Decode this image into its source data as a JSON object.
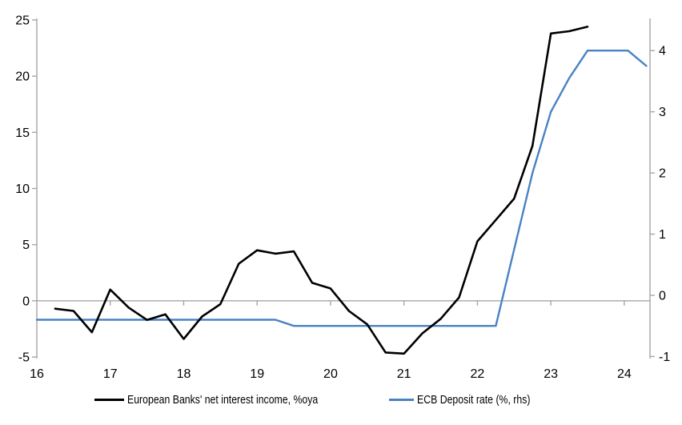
{
  "chart_data": {
    "type": "line",
    "title": "",
    "xlabel": "",
    "ylabel_left": "",
    "ylabel_right": "",
    "grid": "zero-line-only",
    "legend_position": "bottom",
    "series": [
      {
        "name": "European Banks' net interest income, %oya",
        "axis": "left",
        "color": "#000000",
        "x": [
          16.25,
          16.5,
          16.75,
          17.0,
          17.25,
          17.5,
          17.75,
          18.0,
          18.25,
          18.5,
          18.75,
          19.0,
          19.25,
          19.5,
          19.75,
          20.0,
          20.25,
          20.5,
          20.75,
          21.0,
          21.25,
          21.5,
          21.75,
          22.0,
          22.25,
          22.5,
          22.75,
          23.0,
          23.25,
          23.5
        ],
        "values": [
          -0.7,
          -0.9,
          -2.8,
          1.0,
          -0.6,
          -1.7,
          -1.2,
          -3.4,
          -1.4,
          -0.3,
          3.3,
          4.5,
          4.2,
          4.4,
          1.6,
          1.1,
          -0.9,
          -2.1,
          -4.6,
          -4.7,
          -2.9,
          -1.6,
          0.3,
          5.3,
          7.2,
          9.1,
          13.8,
          23.8,
          24.0,
          24.4
        ]
      },
      {
        "name": "ECB Deposit rate (%, rhs)",
        "axis": "right",
        "color": "#4a82c4",
        "x": [
          16.0,
          19.25,
          19.5,
          22.25,
          22.5,
          22.75,
          23.0,
          23.25,
          23.5,
          24.05,
          24.3
        ],
        "values": [
          -0.4,
          -0.4,
          -0.5,
          -0.5,
          0.75,
          2.0,
          3.0,
          3.55,
          4.0,
          4.0,
          3.75
        ]
      }
    ],
    "axes": {
      "x": {
        "min": 16,
        "max": 24.35,
        "ticks": [
          16,
          17,
          18,
          19,
          20,
          21,
          22,
          23,
          24
        ],
        "tick_labels": [
          "16",
          "17",
          "18",
          "19",
          "20",
          "21",
          "22",
          "23",
          "24"
        ]
      },
      "y_left": {
        "min": -5,
        "max": 25,
        "ticks": [
          25,
          20,
          15,
          10,
          5,
          0,
          -5
        ],
        "tick_labels": [
          "25",
          "20",
          "15",
          "10",
          "5",
          "0",
          "-5"
        ]
      },
      "y_right": {
        "min": -1,
        "max": 4.5,
        "ticks": [
          4,
          3,
          2,
          1,
          0,
          -1
        ],
        "tick_labels": [
          "4",
          "3",
          "2",
          "1",
          "0",
          "-1"
        ]
      }
    }
  },
  "colors": {
    "background": "#ffffff",
    "axis_line": "#a6a6a6",
    "zero_line": "#a6a6a6",
    "tick_label": "#000000",
    "series_nii": "#000000",
    "series_ecb": "#4a82c4"
  }
}
